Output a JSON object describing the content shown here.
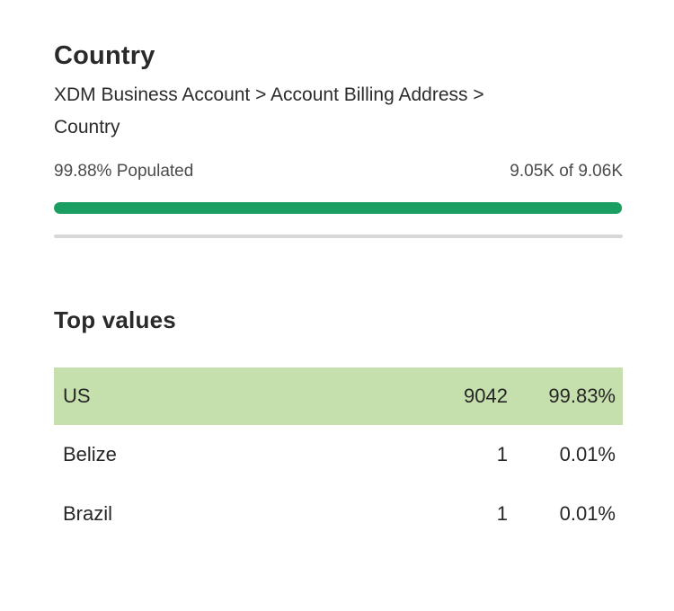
{
  "colors": {
    "progress_green": "#1a9e62",
    "row_highlight_green": "#c6e0ad",
    "divider_gray": "#d8d8d8"
  },
  "field": {
    "title": "Country",
    "path": "XDM Business Account > Account Billing Address > Country",
    "populated_label": "99.88% Populated",
    "populated_pct": 99.88,
    "count_label": "9.05K of 9.06K"
  },
  "top_values": {
    "heading": "Top values",
    "rows": [
      {
        "value": "US",
        "count": "9042",
        "percent": "99.83%",
        "highlighted": true
      },
      {
        "value": "Belize",
        "count": "1",
        "percent": "0.01%",
        "highlighted": false
      },
      {
        "value": "Brazil",
        "count": "1",
        "percent": "0.01%",
        "highlighted": false
      }
    ]
  }
}
